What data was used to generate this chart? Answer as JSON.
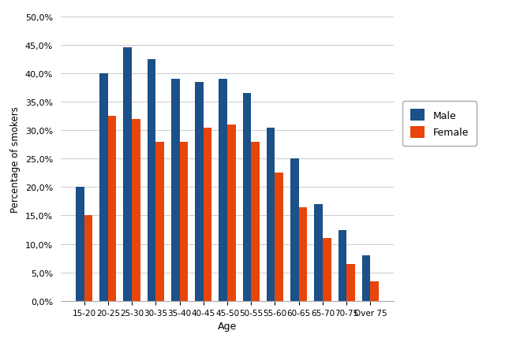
{
  "categories": [
    "15-20",
    "20-25",
    "25-30",
    "30-35",
    "35-40",
    "40-45",
    "45-50",
    "50-55",
    "55-60",
    "60-65",
    "65-70",
    "70-75",
    "Over 75"
  ],
  "male": [
    20.0,
    40.0,
    44.5,
    42.5,
    39.0,
    38.5,
    39.0,
    36.5,
    30.5,
    25.0,
    17.0,
    12.5,
    8.0
  ],
  "female": [
    15.0,
    32.5,
    32.0,
    28.0,
    28.0,
    30.5,
    31.0,
    28.0,
    22.5,
    16.5,
    11.0,
    6.5,
    3.5
  ],
  "male_color": "#1B5088",
  "female_color": "#E8450A",
  "xlabel": "Age",
  "ylabel": "Percentage of smokers",
  "ylim": [
    0,
    50
  ],
  "yticks": [
    0,
    5,
    10,
    15,
    20,
    25,
    30,
    35,
    40,
    45,
    50
  ],
  "legend_labels": [
    "Male",
    "Female"
  ],
  "background_color": "#FFFFFF",
  "grid_color": "#CCCCCC"
}
